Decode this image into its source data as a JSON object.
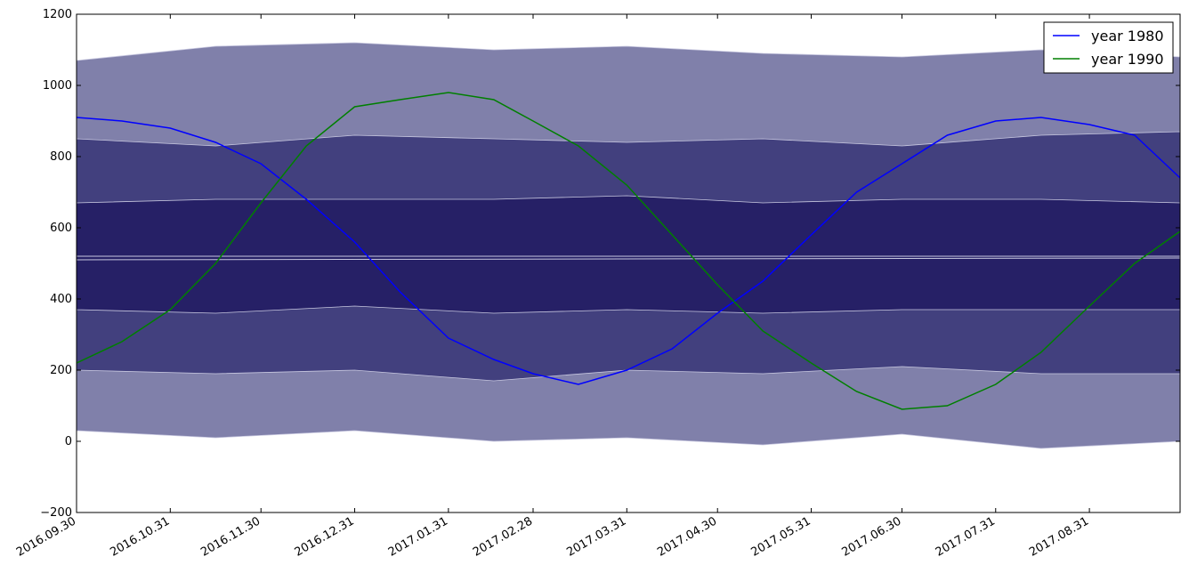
{
  "chart_data": {
    "type": "area",
    "title": "",
    "xlabel": "",
    "ylabel": "",
    "x_range": [
      "2016-09-30",
      "2017-09-30"
    ],
    "ylim": [
      -200,
      1200
    ],
    "y_ticks": [
      -200,
      0,
      200,
      400,
      600,
      800,
      1000,
      1200
    ],
    "y_tick_labels": [
      "−200",
      "0",
      "200",
      "400",
      "600",
      "800",
      "1000",
      "1200"
    ],
    "x_ticks": [
      "2016-09-30",
      "2016-10-31",
      "2016-11-30",
      "2016-12-31",
      "2017-01-31",
      "2017-02-28",
      "2017-03-31",
      "2017-04-30",
      "2017-05-31",
      "2017-06-30",
      "2017-07-31",
      "2017-08-31"
    ],
    "x_tick_labels": [
      "2016.09.30",
      "2016.10.31",
      "2016.11.30",
      "2016.12.31",
      "2017.01.31",
      "2017.02.28",
      "2017.03.31",
      "2017.04.30",
      "2017.05.31",
      "2017.06.30",
      "2017.07.31",
      "2017.08.31"
    ],
    "grid": false,
    "legend_position": "top-right",
    "bands": [
      {
        "fill": "#8080aa",
        "lower": [
          [
            "2016-09-30",
            30
          ],
          [
            "2016-11-15",
            10
          ],
          [
            "2016-12-31",
            30
          ],
          [
            "2017-02-15",
            0
          ],
          [
            "2017-03-31",
            10
          ],
          [
            "2017-05-15",
            -10
          ],
          [
            "2017-06-30",
            20
          ],
          [
            "2017-08-15",
            -20
          ],
          [
            "2017-09-30",
            0
          ]
        ],
        "upper": [
          [
            "2016-09-30",
            1070
          ],
          [
            "2016-11-15",
            1110
          ],
          [
            "2016-12-31",
            1120
          ],
          [
            "2017-02-15",
            1100
          ],
          [
            "2017-03-31",
            1110
          ],
          [
            "2017-05-15",
            1090
          ],
          [
            "2017-06-30",
            1080
          ],
          [
            "2017-08-15",
            1100
          ],
          [
            "2017-09-30",
            1080
          ]
        ]
      },
      {
        "fill": "#42407e",
        "lower": [
          [
            "2016-09-30",
            200
          ],
          [
            "2016-11-15",
            190
          ],
          [
            "2016-12-31",
            200
          ],
          [
            "2017-02-15",
            170
          ],
          [
            "2017-03-31",
            200
          ],
          [
            "2017-05-15",
            190
          ],
          [
            "2017-06-30",
            210
          ],
          [
            "2017-08-15",
            190
          ],
          [
            "2017-09-30",
            190
          ]
        ],
        "upper": [
          [
            "2016-09-30",
            850
          ],
          [
            "2016-11-15",
            830
          ],
          [
            "2016-12-31",
            860
          ],
          [
            "2017-02-15",
            850
          ],
          [
            "2017-03-31",
            840
          ],
          [
            "2017-05-15",
            850
          ],
          [
            "2017-06-30",
            830
          ],
          [
            "2017-08-15",
            860
          ],
          [
            "2017-09-30",
            870
          ]
        ]
      },
      {
        "fill": "#262066",
        "lower": [
          [
            "2016-09-30",
            370
          ],
          [
            "2016-11-15",
            360
          ],
          [
            "2016-12-31",
            380
          ],
          [
            "2017-02-15",
            360
          ],
          [
            "2017-03-31",
            370
          ],
          [
            "2017-05-15",
            360
          ],
          [
            "2017-06-30",
            370
          ],
          [
            "2017-08-15",
            370
          ],
          [
            "2017-09-30",
            370
          ]
        ],
        "upper": [
          [
            "2016-09-30",
            670
          ],
          [
            "2016-11-15",
            680
          ],
          [
            "2016-12-31",
            680
          ],
          [
            "2017-02-15",
            680
          ],
          [
            "2017-03-31",
            690
          ],
          [
            "2017-05-15",
            670
          ],
          [
            "2017-06-30",
            680
          ],
          [
            "2017-08-15",
            680
          ],
          [
            "2017-09-30",
            670
          ]
        ]
      }
    ],
    "median_lines": [
      {
        "color": "#c8c8e0",
        "values": [
          [
            "2016-09-30",
            520
          ],
          [
            "2017-09-30",
            520
          ]
        ]
      },
      {
        "color": "#c8c8e0",
        "values": [
          [
            "2016-09-30",
            510
          ],
          [
            "2017-09-30",
            515
          ]
        ]
      }
    ],
    "series": [
      {
        "name": "year 1980",
        "color": "#0000ff",
        "points": [
          [
            "2016-09-30",
            910
          ],
          [
            "2016-10-15",
            900
          ],
          [
            "2016-10-31",
            880
          ],
          [
            "2016-11-15",
            840
          ],
          [
            "2016-11-30",
            780
          ],
          [
            "2016-12-15",
            680
          ],
          [
            "2016-12-31",
            560
          ],
          [
            "2017-01-15",
            420
          ],
          [
            "2017-01-31",
            290
          ],
          [
            "2017-02-15",
            230
          ],
          [
            "2017-02-28",
            190
          ],
          [
            "2017-03-15",
            160
          ],
          [
            "2017-03-31",
            200
          ],
          [
            "2017-04-15",
            260
          ],
          [
            "2017-04-30",
            360
          ],
          [
            "2017-05-15",
            450
          ],
          [
            "2017-05-31",
            580
          ],
          [
            "2017-06-15",
            700
          ],
          [
            "2017-06-30",
            780
          ],
          [
            "2017-07-15",
            860
          ],
          [
            "2017-07-31",
            900
          ],
          [
            "2017-08-15",
            910
          ],
          [
            "2017-08-31",
            890
          ],
          [
            "2017-09-15",
            860
          ],
          [
            "2017-09-30",
            740
          ]
        ]
      },
      {
        "name": "year 1990",
        "color": "#007f00",
        "points": [
          [
            "2016-09-30",
            220
          ],
          [
            "2016-10-15",
            280
          ],
          [
            "2016-10-31",
            370
          ],
          [
            "2016-11-15",
            500
          ],
          [
            "2016-11-30",
            670
          ],
          [
            "2016-12-15",
            830
          ],
          [
            "2016-12-31",
            940
          ],
          [
            "2017-01-15",
            960
          ],
          [
            "2017-01-31",
            980
          ],
          [
            "2017-02-15",
            960
          ],
          [
            "2017-02-28",
            900
          ],
          [
            "2017-03-15",
            830
          ],
          [
            "2017-03-31",
            720
          ],
          [
            "2017-04-15",
            580
          ],
          [
            "2017-04-30",
            440
          ],
          [
            "2017-05-15",
            310
          ],
          [
            "2017-05-31",
            220
          ],
          [
            "2017-06-15",
            140
          ],
          [
            "2017-06-30",
            90
          ],
          [
            "2017-07-15",
            100
          ],
          [
            "2017-07-31",
            160
          ],
          [
            "2017-08-15",
            250
          ],
          [
            "2017-08-31",
            380
          ],
          [
            "2017-09-15",
            500
          ],
          [
            "2017-09-30",
            590
          ]
        ]
      }
    ]
  }
}
